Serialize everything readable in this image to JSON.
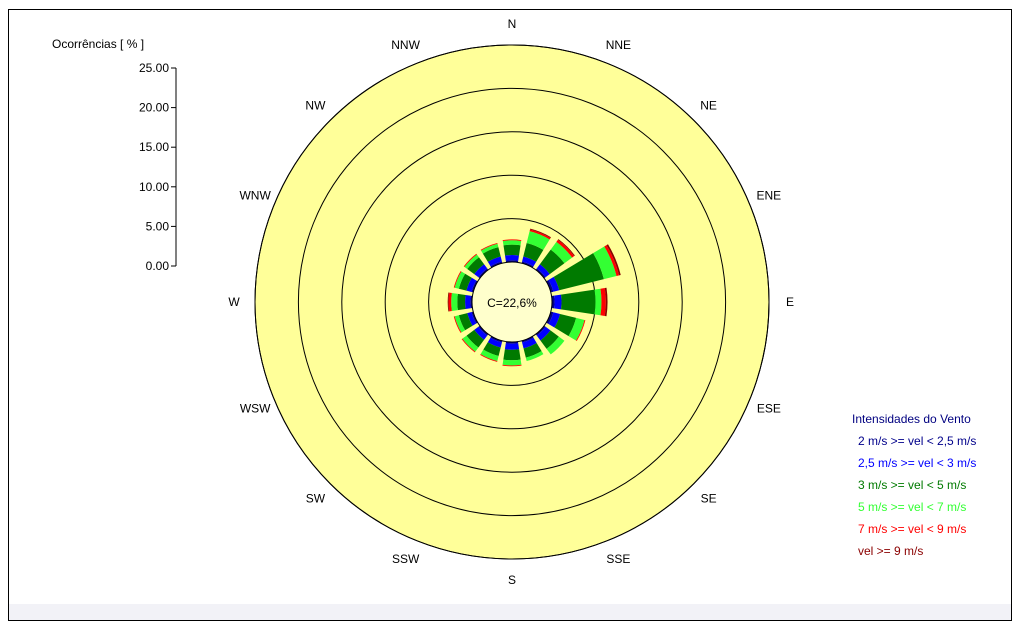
{
  "chart_data": {
    "type": "wind-rose",
    "title": "",
    "scale_title": "Ocorrências [ % ]",
    "scale_ticks": [
      "25.00",
      "20.00",
      "15.00",
      "10.00",
      "5.00",
      "0.00"
    ],
    "rmax": 25,
    "calm_label": "C=22,6%",
    "calm_percent": 22.6,
    "directions": [
      "N",
      "NNE",
      "NE",
      "ENE",
      "E",
      "ESE",
      "SE",
      "SSE",
      "S",
      "SSW",
      "SW",
      "WSW",
      "W",
      "WNW",
      "NW",
      "NNW"
    ],
    "legend_title": "Intensidades do Vento",
    "series": [
      {
        "name": "2 m/s >= vel < 2,5 m/s",
        "color": "#00008b",
        "values": [
          0.2,
          0.2,
          0.2,
          0.3,
          0.3,
          0.3,
          0.2,
          0.2,
          0.2,
          0.2,
          0.2,
          0.2,
          0.2,
          0.2,
          0.2,
          0.2
        ]
      },
      {
        "name": "2,5 m/s >= vel < 3 m/s",
        "color": "#0000ff",
        "values": [
          0.6,
          0.6,
          0.6,
          0.7,
          0.8,
          0.8,
          0.7,
          0.7,
          0.7,
          0.6,
          0.6,
          0.5,
          0.6,
          0.6,
          0.6,
          0.6
        ]
      },
      {
        "name": "3 m/s >= vel < 5 m/s",
        "color": "#007a00",
        "values": [
          1.2,
          1.6,
          2.1,
          5.3,
          3.9,
          1.9,
          1.2,
          1.1,
          1.2,
          1.0,
          1.1,
          1.0,
          0.9,
          0.9,
          1.0,
          1.1
        ]
      },
      {
        "name": "5 m/s >= vel < 7 m/s",
        "color": "#33ff33",
        "values": [
          0.5,
          1.4,
          1.1,
          1.5,
          0.7,
          1.0,
          0.8,
          0.4,
          0.6,
          0.6,
          0.6,
          0.5,
          0.7,
          0.5,
          0.4,
          0.4
        ]
      },
      {
        "name": "7 m/s >= vel < 9 m/s",
        "color": "#ff0000",
        "values": [
          0.1,
          0.2,
          0.3,
          0.3,
          0.5,
          0.1,
          0.0,
          0.0,
          0.1,
          0.1,
          0.1,
          0.1,
          0.3,
          0.1,
          0.1,
          0.1
        ]
      },
      {
        "name": "vel >= 9 m/s",
        "color": "#8b0000",
        "values": [
          0.0,
          0.1,
          0.1,
          0.2,
          0.2,
          0.0,
          0.0,
          0.0,
          0.0,
          0.0,
          0.0,
          0.0,
          0.1,
          0.0,
          0.0,
          0.0
        ]
      }
    ],
    "colors": {
      "background_disc": "#ffff99",
      "grid": "#000000",
      "calm_disc": "#ffffcc"
    }
  }
}
